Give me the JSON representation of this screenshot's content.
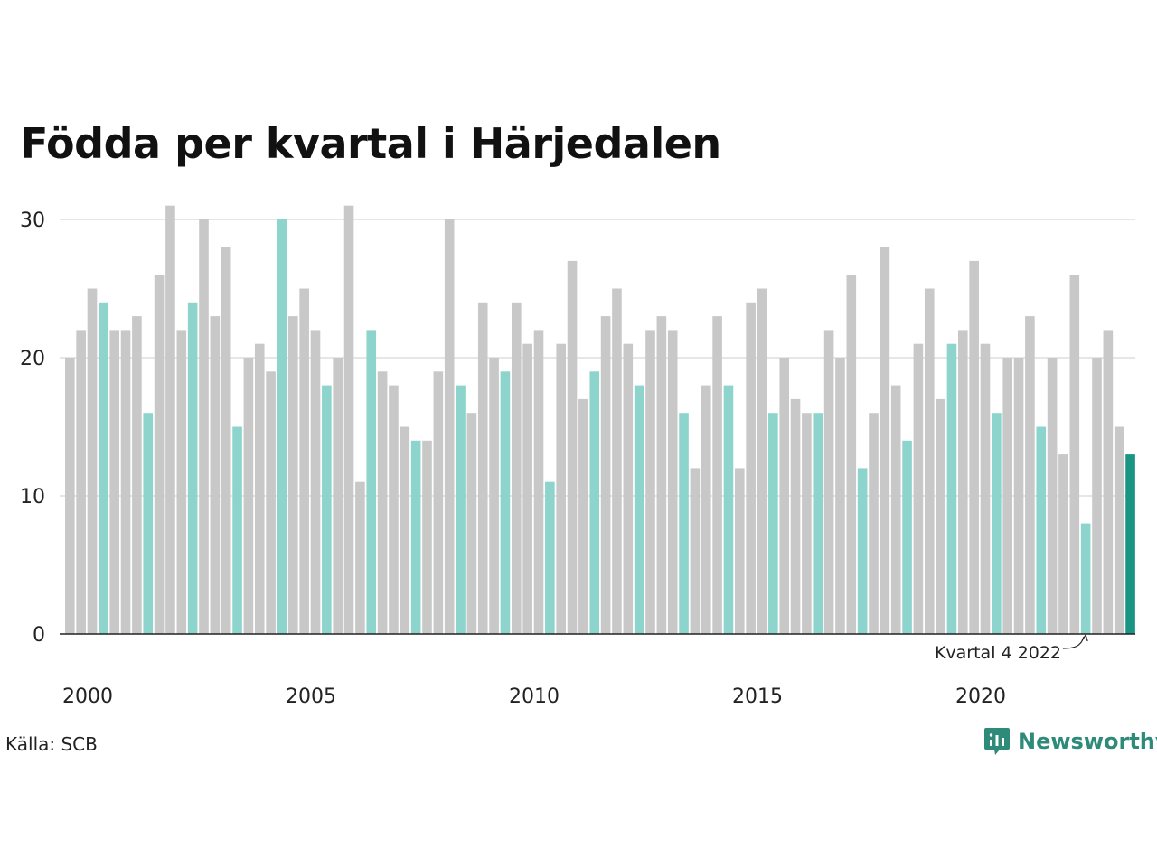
{
  "title": "Födda per kvartal i Härjedalen",
  "source": "Källa: SCB",
  "logo_text": "Newsworthy",
  "colors": {
    "bar_default": "#c8c8c8",
    "bar_q4": "#8dd5cc",
    "bar_latest": "#1a9483",
    "grid": "#e6e6e6",
    "axis": "#222222",
    "brand": "#2e8b7a"
  },
  "chart_data": {
    "type": "bar",
    "title": "Födda per kvartal i Härjedalen",
    "xlabel": "",
    "ylabel": "",
    "ylim": [
      0,
      31
    ],
    "yticks": [
      0,
      10,
      20,
      30
    ],
    "xtick_labels": [
      "2000",
      "2005",
      "2010",
      "2015",
      "2020"
    ],
    "grid": true,
    "start_year": 2000,
    "values": [
      20,
      22,
      25,
      24,
      22,
      22,
      23,
      16,
      26,
      31,
      22,
      24,
      30,
      23,
      28,
      15,
      20,
      21,
      19,
      30,
      23,
      25,
      22,
      18,
      20,
      31,
      11,
      22,
      19,
      18,
      15,
      14,
      14,
      19,
      30,
      18,
      16,
      24,
      20,
      19,
      24,
      21,
      22,
      11,
      21,
      27,
      17,
      19,
      23,
      25,
      21,
      18,
      22,
      23,
      22,
      16,
      12,
      18,
      23,
      18,
      12,
      24,
      25,
      16,
      20,
      17,
      16,
      16,
      22,
      20,
      26,
      12,
      16,
      28,
      18,
      14,
      21,
      25,
      17,
      21,
      22,
      27,
      21,
      16,
      20,
      20,
      23,
      15,
      20,
      13,
      26,
      8,
      20,
      22,
      15,
      13
    ],
    "annotation": {
      "text": "Kvartal 4 2022",
      "index": 91
    }
  }
}
